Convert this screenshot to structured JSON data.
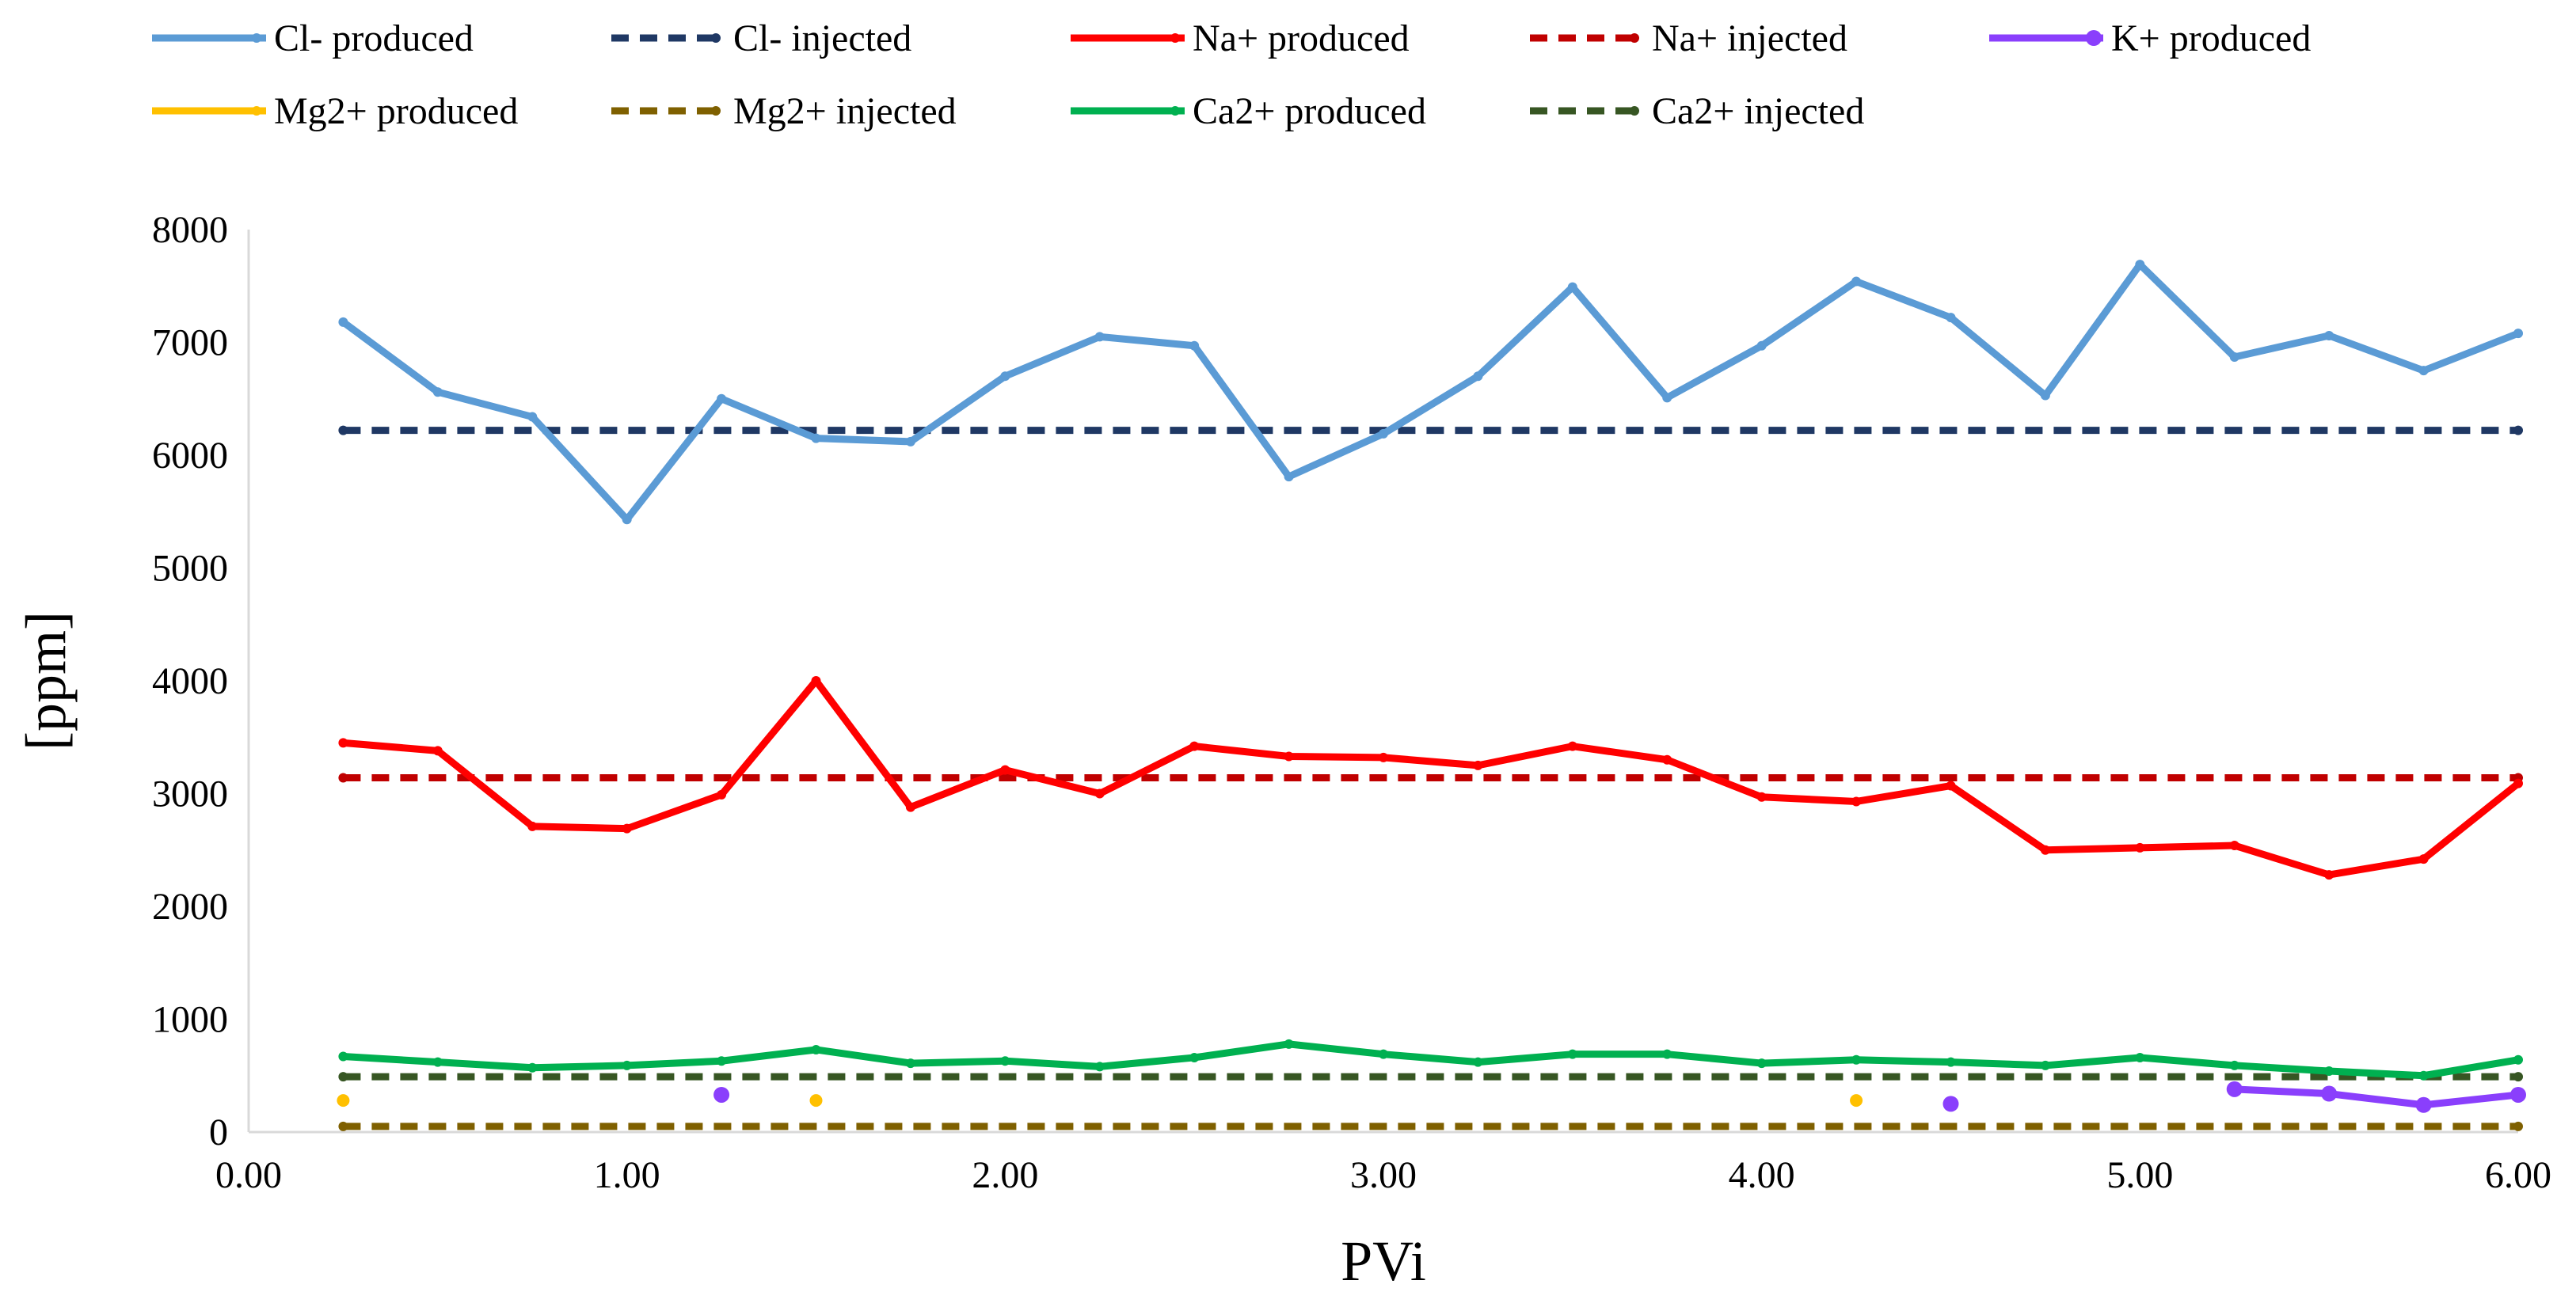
{
  "chart_data": {
    "type": "line",
    "title": "",
    "xlabel": "PVi",
    "ylabel": "[ppm]",
    "xlim": [
      0,
      6
    ],
    "ylim": [
      0,
      8000
    ],
    "grid": false,
    "legend_position": "top",
    "x_ticks": [
      "0.00",
      "1.00",
      "2.00",
      "3.00",
      "4.00",
      "5.00",
      "6.00"
    ],
    "y_ticks": [
      "0",
      "1000",
      "2000",
      "3000",
      "4000",
      "5000",
      "6000",
      "7000",
      "8000"
    ],
    "series": [
      {
        "name": "Cl- produced",
        "color": "#5b9bd5",
        "style": "solid",
        "x": [
          0.25,
          0.5,
          0.75,
          1.0,
          1.25,
          1.5,
          1.75,
          2.0,
          2.25,
          2.5,
          2.75,
          3.0,
          3.25,
          3.5,
          3.75,
          4.0,
          4.25,
          4.5,
          4.75,
          5.0,
          5.25,
          5.5,
          5.75,
          6.0
        ],
        "values": [
          7180,
          6560,
          6340,
          5430,
          6500,
          6150,
          6120,
          6700,
          7050,
          6970,
          5810,
          6190,
          6700,
          7490,
          6510,
          6970,
          7540,
          7220,
          6530,
          7690,
          6870,
          7060,
          6750,
          7080
        ]
      },
      {
        "name": "Cl- injected",
        "color": "#1f3864",
        "style": "dashed",
        "x": [
          0.25,
          6.0
        ],
        "values": [
          6220,
          6220
        ]
      },
      {
        "name": "Na+ produced",
        "color": "#ff0000",
        "style": "solid",
        "x": [
          0.25,
          0.5,
          0.75,
          1.0,
          1.25,
          1.5,
          1.75,
          2.0,
          2.25,
          2.5,
          2.75,
          3.0,
          3.25,
          3.5,
          3.75,
          4.0,
          4.25,
          4.5,
          4.75,
          5.0,
          5.25,
          5.5,
          5.75,
          6.0
        ],
        "values": [
          3450,
          3380,
          2710,
          2690,
          2990,
          4000,
          2880,
          3210,
          3000,
          3420,
          3330,
          3320,
          3250,
          3420,
          3300,
          2970,
          2930,
          3070,
          2500,
          2520,
          2540,
          2280,
          2420,
          3090
        ]
      },
      {
        "name": "Na+ injected",
        "color": "#c00000",
        "style": "dashed",
        "x": [
          0.25,
          6.0
        ],
        "values": [
          3140,
          3140
        ]
      },
      {
        "name": "K+ produced",
        "color": "#8a3ffc",
        "style": "solid",
        "x": [
          1.25,
          4.5,
          5.25,
          5.5,
          5.75,
          6.0
        ],
        "values": [
          330,
          250,
          380,
          340,
          240,
          330
        ],
        "segments": [
          [
            0
          ],
          [
            1
          ],
          [
            2,
            3,
            4,
            5
          ]
        ]
      },
      {
        "name": "Mg2+ produced",
        "color": "#ffc000",
        "style": "points",
        "x": [
          0.25,
          1.5,
          4.25
        ],
        "values": [
          280,
          280,
          280
        ]
      },
      {
        "name": "Mg2+ injected",
        "color": "#7f6000",
        "style": "dashed",
        "x": [
          0.25,
          6.0
        ],
        "values": [
          50,
          50
        ]
      },
      {
        "name": "Ca2+ produced",
        "color": "#00b050",
        "style": "solid",
        "x": [
          0.25,
          0.5,
          0.75,
          1.0,
          1.25,
          1.5,
          1.75,
          2.0,
          2.25,
          2.5,
          2.75,
          3.0,
          3.25,
          3.5,
          3.75,
          4.0,
          4.25,
          4.5,
          4.75,
          5.0,
          5.25,
          5.5,
          5.75,
          6.0
        ],
        "values": [
          670,
          620,
          570,
          590,
          630,
          730,
          610,
          630,
          580,
          660,
          780,
          690,
          620,
          690,
          690,
          610,
          640,
          620,
          590,
          660,
          590,
          540,
          500,
          640
        ]
      },
      {
        "name": "Ca2+ injected",
        "color": "#375623",
        "style": "dashed",
        "x": [
          0.25,
          6.0
        ],
        "values": [
          490,
          490
        ]
      }
    ]
  }
}
